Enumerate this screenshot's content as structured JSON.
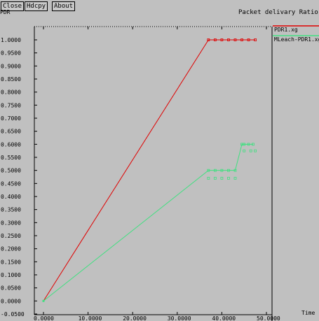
{
  "toolbar": {
    "close_label": "Close",
    "hdcpy_label": "Hdcpy",
    "about_label": "About"
  },
  "window_title": "Packet delivary Ratio",
  "y_unit_label": "PDR",
  "x_unit_label": "Time",
  "legend": [
    {
      "name": "PDR1.xg",
      "color": "#e00000"
    },
    {
      "name": "MLeach-PDR1.xg",
      "color": "#40e080"
    }
  ],
  "chart_data": {
    "type": "line",
    "title": "Packet delivary Ratio",
    "xlabel": "Time",
    "ylabel": "PDR",
    "xlim": [
      -2,
      51
    ],
    "ylim": [
      -0.05,
      1.05
    ],
    "x_ticks": [
      "0.0000",
      "10.0000",
      "20.0000",
      "30.0000",
      "40.0000",
      "50.0000"
    ],
    "y_ticks": [
      "-0.0500",
      "0.0000",
      "0.0500",
      "0.1000",
      "0.1500",
      "0.2000",
      "0.2500",
      "0.3000",
      "0.3500",
      "0.4000",
      "0.4500",
      "0.5000",
      "0.5500",
      "0.6000",
      "0.6500",
      "0.7000",
      "0.7500",
      "0.8000",
      "0.8500",
      "0.9000",
      "0.9500",
      "1.0000"
    ],
    "grid": false,
    "series": [
      {
        "name": "PDR1.xg",
        "color": "#e00000",
        "x": [
          0,
          37,
          38.5,
          40,
          41.5,
          43,
          44.5,
          46,
          47.5
        ],
        "y": [
          0,
          1.0,
          1.0,
          1.0,
          1.0,
          1.0,
          1.0,
          1.0,
          1.0
        ]
      },
      {
        "name": "MLeach-PDR1.xg",
        "color": "#40e080",
        "x": [
          0,
          37,
          38.5,
          40,
          41.5,
          43,
          44.5,
          45,
          46,
          47
        ],
        "y": [
          0,
          0.5,
          0.5,
          0.5,
          0.5,
          0.5,
          0.6,
          0.6,
          0.6,
          0.6
        ],
        "ghost_points": {
          "x": [
            37,
            38.5,
            40,
            41.5,
            43,
            45,
            46.5,
            47.5
          ],
          "y": [
            0.47,
            0.47,
            0.47,
            0.47,
            0.47,
            0.575,
            0.575,
            0.575
          ]
        }
      }
    ]
  }
}
